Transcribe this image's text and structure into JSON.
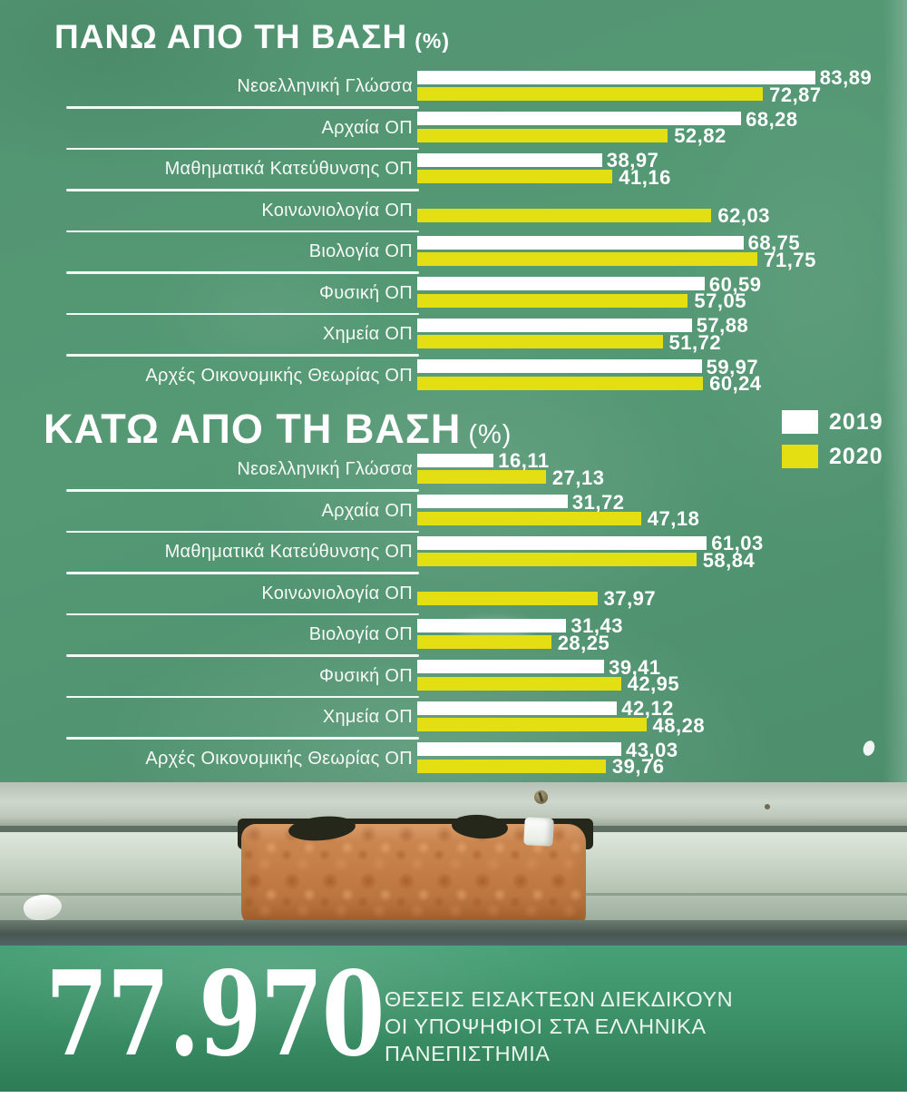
{
  "colors": {
    "board_green": "#539572",
    "bar_2019": "#ffffff",
    "bar_2020": "#e4df12",
    "band_green_top": "#47a076",
    "band_green_bottom": "#2d7c55"
  },
  "charts": [
    {
      "title": "ΠΑΝΩ ΑΠΟ ΤΗ ΒΑΣΗ",
      "unit": "(%)",
      "rows": [
        {
          "label": "Νεοελληνική Γλώσσα",
          "v2019": "83,89",
          "v2020": "72,87"
        },
        {
          "label": "Αρχαία ΟΠ",
          "v2019": "68,28",
          "v2020": "52,82"
        },
        {
          "label": "Μαθηματικά Κατεύθυνσης ΟΠ",
          "v2019": "38,97",
          "v2020": "41,16"
        },
        {
          "label": "Κοινωνιολογία ΟΠ",
          "v2019": null,
          "v2020": "62,03"
        },
        {
          "label": "Βιολογία ΟΠ",
          "v2019": "68,75",
          "v2020": "71,75"
        },
        {
          "label": "Φυσική ΟΠ",
          "v2019": "60,59",
          "v2020": "57,05"
        },
        {
          "label": "Χημεία ΟΠ",
          "v2019": "57,88",
          "v2020": "51,72"
        },
        {
          "label": "Αρχές Οικονομικής Θεωρίας ΟΠ",
          "v2019": "59,97",
          "v2020": "60,24"
        }
      ]
    },
    {
      "title": "ΚΑΤΩ ΑΠΟ ΤΗ ΒΑΣΗ",
      "unit": "(%)",
      "rows": [
        {
          "label": "Νεοελληνική Γλώσσα",
          "v2019": "16,11",
          "v2020": "27,13"
        },
        {
          "label": "Αρχαία ΟΠ",
          "v2019": "31,72",
          "v2020": "47,18"
        },
        {
          "label": "Μαθηματικά Κατεύθυνσης ΟΠ",
          "v2019": "61,03",
          "v2020": "58,84"
        },
        {
          "label": "Κοινωνιολογία ΟΠ",
          "v2019": null,
          "v2020": "37,97"
        },
        {
          "label": "Βιολογία ΟΠ",
          "v2019": "31,43",
          "v2020": "28,25"
        },
        {
          "label": "Φυσική ΟΠ",
          "v2019": "39,41",
          "v2020": "42,95"
        },
        {
          "label": "Χημεία ΟΠ",
          "v2019": "42,12",
          "v2020": "48,28"
        },
        {
          "label": "Αρχές Οικονομικής Θεωρίας ΟΠ",
          "v2019": "43,03",
          "v2020": "39,76"
        }
      ]
    }
  ],
  "legend": {
    "items": [
      {
        "label": "2019",
        "color": "#ffffff"
      },
      {
        "label": "2020",
        "color": "#e4df12"
      }
    ]
  },
  "footer": {
    "number": "77.970",
    "caption_lines": [
      "ΘΕΣΕΙΣ ΕΙΣΑΚΤΕΩΝ ΔΙΕΚΔΙΚΟΥΝ",
      "ΟΙ ΥΠΟΨΗΦΙΟΙ ΣΤΑ ΕΛΛΗΝΙΚΑ",
      "ΠΑΝΕΠΙΣΤΗΜΙΑ"
    ]
  },
  "chart_data": [
    {
      "type": "bar",
      "orientation": "horizontal",
      "title": "ΠΑΝΩ ΑΠΟ ΤΗ ΒΑΣΗ (%)",
      "categories": [
        "Νεοελληνική Γλώσσα",
        "Αρχαία ΟΠ",
        "Μαθηματικά Κατεύθυνσης ΟΠ",
        "Κοινωνιολογία ΟΠ",
        "Βιολογία ΟΠ",
        "Φυσική ΟΠ",
        "Χημεία ΟΠ",
        "Αρχές Οικονομικής Θεωρίας ΟΠ"
      ],
      "series": [
        {
          "name": "2019",
          "color": "#ffffff",
          "values": [
            83.89,
            68.28,
            38.97,
            null,
            68.75,
            60.59,
            57.88,
            59.97
          ]
        },
        {
          "name": "2020",
          "color": "#e4df12",
          "values": [
            72.87,
            52.82,
            41.16,
            62.03,
            71.75,
            57.05,
            51.72,
            60.24
          ]
        }
      ],
      "xlim": [
        0,
        84
      ],
      "grid": false,
      "legend_position": "right",
      "value_labels": true
    },
    {
      "type": "bar",
      "orientation": "horizontal",
      "title": "ΚΑΤΩ ΑΠΟ ΤΗ ΒΑΣΗ (%)",
      "categories": [
        "Νεοελληνική Γλώσσα",
        "Αρχαία ΟΠ",
        "Μαθηματικά Κατεύθυνσης ΟΠ",
        "Κοινωνιολογία ΟΠ",
        "Βιολογία ΟΠ",
        "Φυσική ΟΠ",
        "Χημεία ΟΠ",
        "Αρχές Οικονομικής Θεωρίας ΟΠ"
      ],
      "series": [
        {
          "name": "2019",
          "color": "#ffffff",
          "values": [
            16.11,
            31.72,
            61.03,
            null,
            31.43,
            39.41,
            42.12,
            43.03
          ]
        },
        {
          "name": "2020",
          "color": "#e4df12",
          "values": [
            27.13,
            47.18,
            58.84,
            37.97,
            28.25,
            42.95,
            48.28,
            39.76
          ]
        }
      ],
      "xlim": [
        0,
        84
      ],
      "grid": false,
      "legend_position": "right",
      "value_labels": true
    }
  ]
}
